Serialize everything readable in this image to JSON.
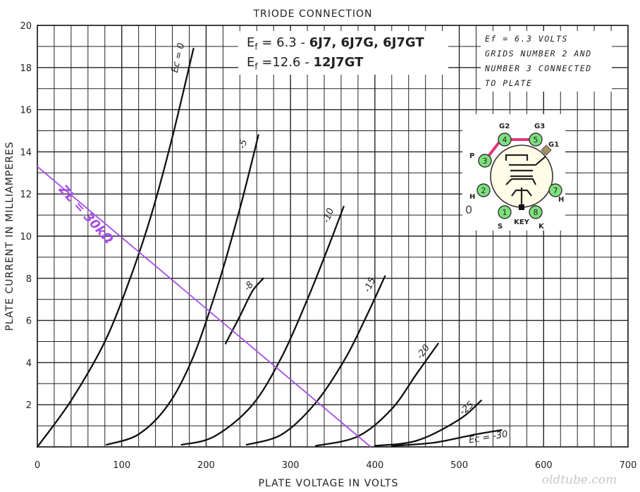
{
  "chart_data": {
    "type": "line",
    "title": "TRIODE CONNECTION",
    "xlabel": "PLATE VOLTAGE IN VOLTS",
    "ylabel": "PLATE CURRENT IN MILLIAMPERES",
    "xlim": [
      0,
      700
    ],
    "ylim": [
      0,
      20
    ],
    "x_ticks": [
      0,
      100,
      200,
      300,
      400,
      500,
      600,
      700
    ],
    "y_ticks": [
      2,
      4,
      6,
      8,
      10,
      12,
      14,
      16,
      18,
      20
    ],
    "grid": true,
    "series": [
      {
        "name": "Ec = 0",
        "x": [
          0,
          40,
          80,
          110,
          135,
          160,
          185
        ],
        "y": [
          0,
          2.2,
          5.0,
          8.0,
          11.0,
          14.7,
          18.9
        ]
      },
      {
        "name": "-5",
        "x": [
          82,
          120,
          155,
          185,
          215,
          240,
          262
        ],
        "y": [
          0.1,
          0.6,
          2.0,
          4.3,
          7.8,
          11.3,
          14.8
        ]
      },
      {
        "name": "-8",
        "x": [
          223,
          240,
          255,
          268
        ],
        "y": [
          4.9,
          6.2,
          7.4,
          8.0
        ]
      },
      {
        "name": "-10",
        "x": [
          171,
          210,
          255,
          290,
          320,
          345,
          363
        ],
        "y": [
          0.1,
          0.5,
          2.0,
          4.3,
          7.0,
          9.5,
          11.4
        ]
      },
      {
        "name": "-15",
        "x": [
          248,
          290,
          330,
          365,
          390,
          412
        ],
        "y": [
          0.1,
          0.6,
          2.1,
          4.2,
          6.2,
          8.1
        ]
      },
      {
        "name": "-20",
        "x": [
          330,
          380,
          420,
          450,
          475
        ],
        "y": [
          0.05,
          0.5,
          1.8,
          3.5,
          4.9
        ]
      },
      {
        "name": "-25",
        "x": [
          400,
          450,
          500,
          526
        ],
        "y": [
          0.05,
          0.3,
          1.3,
          2.2
        ]
      },
      {
        "name": "Ec = -30",
        "x": [
          420,
          470,
          520,
          550
        ],
        "y": [
          0.05,
          0.2,
          0.6,
          0.8
        ]
      }
    ],
    "load_line": {
      "label": "ZL = 30kΩ",
      "x": [
        0,
        395
      ],
      "y": [
        13.3,
        0
      ],
      "color": "#a64ee6"
    }
  },
  "ef_box": {
    "line1_prefix": "E",
    "line1_sub": "f",
    "line1_value": " = 6.3 - ",
    "line1_tubes": "6J7, 6J7G, 6J7GT",
    "line2_prefix": "E",
    "line2_sub": "f",
    "line2_value": " =12.6 - ",
    "line2_tubes": "12J7GT"
  },
  "note": {
    "lines": [
      "Ef = 6.3 VOLTS",
      "GRIDS NUMBER 2 AND",
      "NUMBER 3 CONNECTED",
      "TO PLATE"
    ]
  },
  "socket": {
    "pins": [
      "1",
      "2",
      "3",
      "4",
      "5",
      "7",
      "8"
    ],
    "labels": {
      "g2": "G2",
      "g3": "G3",
      "g1": "G1",
      "p": "P",
      "h_left": "H",
      "h_right": "H",
      "s": "S",
      "key": "KEY",
      "k": "K"
    },
    "stray_mark": "0",
    "pin_fill": "#7de07d",
    "strap_color": "#e0357a"
  },
  "watermark": "oldtube.com"
}
